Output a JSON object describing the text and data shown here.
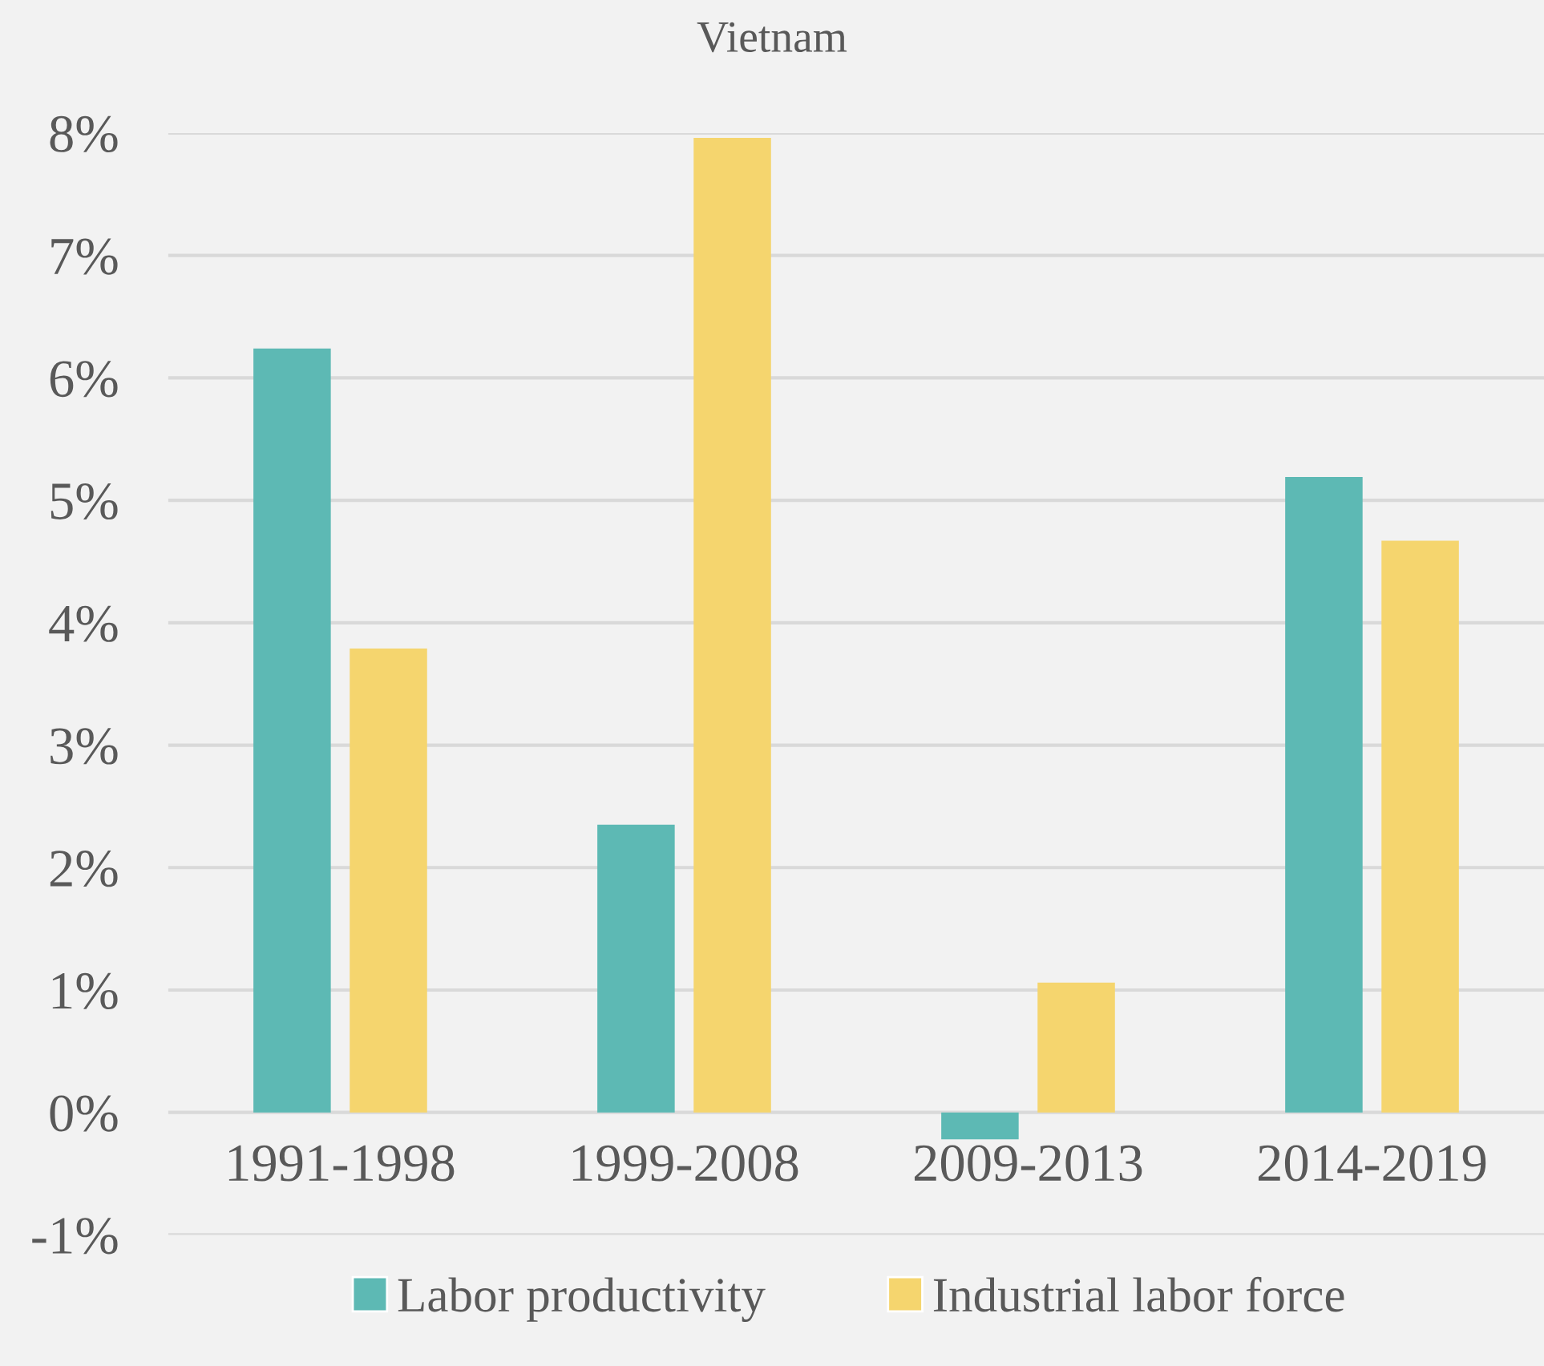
{
  "chart_data": {
    "type": "bar",
    "title": "Vietnam",
    "categories": [
      "1991-1998",
      "1999-2008",
      "2009-2013",
      "2014-2019"
    ],
    "series": [
      {
        "name": "Labor productivity",
        "color": "#5db9b4",
        "values": [
          6.24,
          2.35,
          -0.22,
          5.19
        ]
      },
      {
        "name": "Industrial labor force",
        "color": "#f5d56e",
        "values": [
          3.79,
          7.96,
          1.06,
          4.67
        ]
      }
    ],
    "ylim": [
      -1,
      8
    ],
    "yticks": [
      {
        "value": -1,
        "label": "-1%"
      },
      {
        "value": 0,
        "label": "0%"
      },
      {
        "value": 1,
        "label": "1%"
      },
      {
        "value": 2,
        "label": "2%"
      },
      {
        "value": 3,
        "label": "3%"
      },
      {
        "value": 4,
        "label": "4%"
      },
      {
        "value": 5,
        "label": "5%"
      },
      {
        "value": 6,
        "label": "6%"
      },
      {
        "value": 7,
        "label": "7%"
      },
      {
        "value": 8,
        "label": "8%"
      }
    ],
    "grid": "y",
    "legend": "bottom"
  }
}
